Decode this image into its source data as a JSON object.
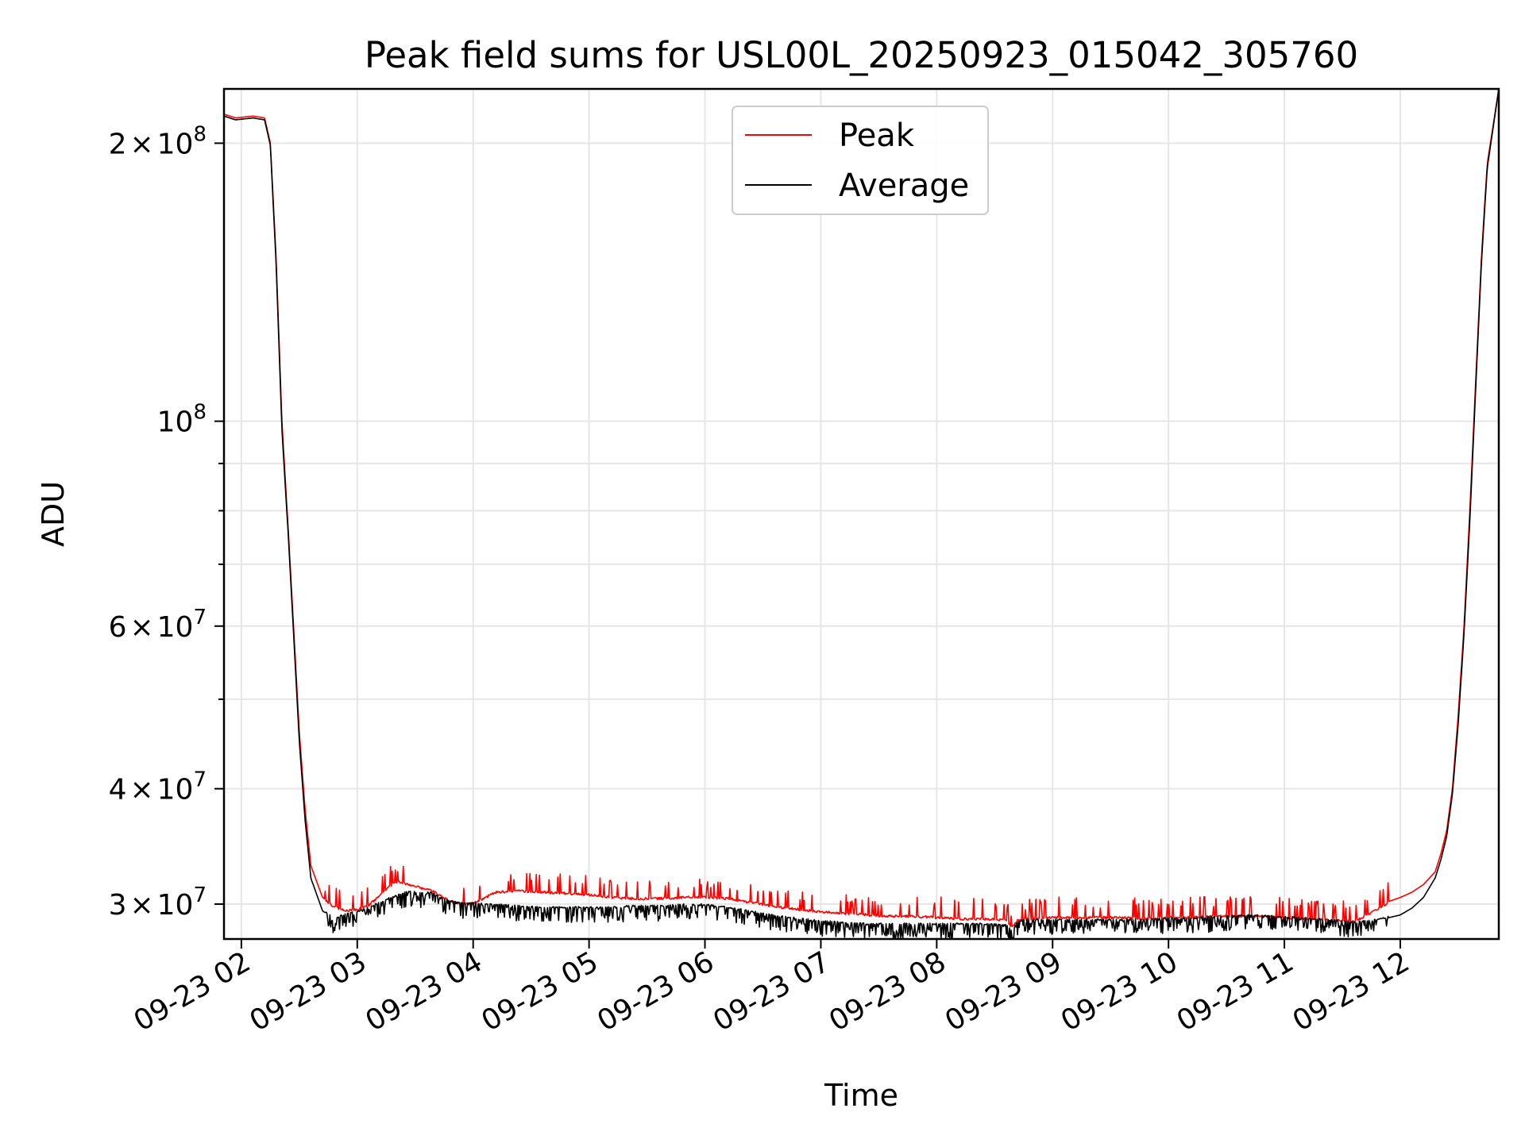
{
  "chart_data": {
    "type": "line",
    "title": "Peak field sums for USL00L_20250923_015042_305760",
    "xlabel": "Time",
    "ylabel": "ADU",
    "yscale": "log",
    "grid": true,
    "legend_position": "top-center",
    "xlim": [
      1.85,
      12.85
    ],
    "ylim": [
      27500000,
      229000000
    ],
    "x_unit": "hours on 09-23",
    "x_ticks": [
      {
        "value": 2,
        "label": "09-23 02"
      },
      {
        "value": 3,
        "label": "09-23 03"
      },
      {
        "value": 4,
        "label": "09-23 04"
      },
      {
        "value": 5,
        "label": "09-23 05"
      },
      {
        "value": 6,
        "label": "09-23 06"
      },
      {
        "value": 7,
        "label": "09-23 07"
      },
      {
        "value": 8,
        "label": "09-23 08"
      },
      {
        "value": 9,
        "label": "09-23 09"
      },
      {
        "value": 10,
        "label": "09-23 10"
      },
      {
        "value": 11,
        "label": "09-23 11"
      },
      {
        "value": 12,
        "label": "09-23 12"
      }
    ],
    "y_ticks": [
      {
        "value": 30000000,
        "mantissa": "3",
        "exponent": "7"
      },
      {
        "value": 40000000,
        "mantissa": "4",
        "exponent": "7"
      },
      {
        "value": 60000000,
        "mantissa": "6",
        "exponent": "7"
      },
      {
        "value": 100000000,
        "mantissa": "",
        "exponent": "8"
      },
      {
        "value": 200000000,
        "mantissa": "2",
        "exponent": "8"
      }
    ],
    "y_minor_ticks": [
      50000000,
      70000000,
      80000000,
      90000000
    ],
    "times_sign": "×",
    "power_base": "10",
    "series": [
      {
        "name": "Peak",
        "color": "#ff0000",
        "x": [
          1.85,
          1.95,
          2.1,
          2.2,
          2.25,
          2.3,
          2.35,
          2.4,
          2.45,
          2.5,
          2.55,
          2.6,
          2.7,
          2.8,
          2.9,
          3.0,
          3.1,
          3.2,
          3.3,
          3.35,
          3.45,
          3.55,
          3.65,
          3.7,
          3.8,
          3.9,
          4.0,
          4.2,
          4.4,
          4.6,
          4.8,
          5.0,
          5.2,
          5.4,
          5.6,
          5.8,
          6.0,
          6.2,
          6.4,
          6.6,
          6.8,
          7.0,
          7.2,
          7.4,
          7.6,
          7.8,
          8.0,
          8.2,
          8.4,
          8.6,
          8.65,
          8.7,
          8.8,
          9.0,
          9.2,
          9.4,
          9.6,
          9.8,
          10.0,
          10.2,
          10.4,
          10.6,
          10.8,
          11.0,
          11.2,
          11.4,
          11.6,
          11.8,
          11.9,
          12.0,
          12.1,
          12.2,
          12.3,
          12.35,
          12.4,
          12.45,
          12.5,
          12.55,
          12.6,
          12.65,
          12.7,
          12.75,
          12.85
        ],
        "y": [
          215000000,
          213000000,
          214000000,
          213000000,
          200000000,
          150000000,
          100000000,
          78000000,
          60000000,
          46000000,
          38000000,
          33000000,
          30500000,
          29900000,
          29600000,
          29700000,
          30000000,
          30800000,
          31600000,
          31800000,
          31600000,
          31300000,
          31100000,
          30800000,
          30300000,
          30100000,
          30100000,
          31000000,
          31100000,
          31000000,
          30900000,
          30800000,
          30600000,
          30500000,
          30500000,
          30600000,
          30600000,
          30500000,
          30200000,
          29900000,
          29700000,
          29500000,
          29400000,
          29300000,
          29200000,
          29200000,
          29100000,
          29000000,
          29000000,
          28900000,
          28400000,
          28900000,
          29000000,
          29100000,
          29100000,
          29100000,
          29100000,
          29000000,
          29100000,
          29100000,
          29200000,
          29200000,
          29200000,
          29100000,
          29000000,
          28900000,
          28800000,
          29700000,
          30200000,
          30500000,
          30900000,
          31500000,
          32500000,
          34000000,
          36000000,
          40000000,
          48000000,
          60000000,
          80000000,
          110000000,
          150000000,
          190000000,
          229000000
        ]
      },
      {
        "name": "Average",
        "color": "#000000",
        "x": [
          1.85,
          1.95,
          2.1,
          2.2,
          2.25,
          2.3,
          2.35,
          2.4,
          2.45,
          2.5,
          2.55,
          2.6,
          2.7,
          2.8,
          2.9,
          3.0,
          3.1,
          3.2,
          3.3,
          3.35,
          3.45,
          3.55,
          3.65,
          3.7,
          3.8,
          3.9,
          4.0,
          4.2,
          4.4,
          4.6,
          4.8,
          5.0,
          5.2,
          5.4,
          5.6,
          5.8,
          6.0,
          6.2,
          6.4,
          6.6,
          6.8,
          7.0,
          7.2,
          7.4,
          7.6,
          7.8,
          8.0,
          8.2,
          8.4,
          8.6,
          8.65,
          8.7,
          8.8,
          9.0,
          9.2,
          9.4,
          9.6,
          9.8,
          10.0,
          10.2,
          10.4,
          10.6,
          10.8,
          11.0,
          11.2,
          11.4,
          11.6,
          11.8,
          11.9,
          12.0,
          12.1,
          12.2,
          12.3,
          12.35,
          12.4,
          12.45,
          12.5,
          12.55,
          12.6,
          12.65,
          12.7,
          12.75,
          12.85
        ],
        "y": [
          214000000,
          212000000,
          213000000,
          212000000,
          199000000,
          148000000,
          98000000,
          77000000,
          59000000,
          45000000,
          37000000,
          32000000,
          29500000,
          28900000,
          29200000,
          29400000,
          29700000,
          30100000,
          30500000,
          30700000,
          30900000,
          30800000,
          30800000,
          30500000,
          30200000,
          30000000,
          30000000,
          29900000,
          29800000,
          29700000,
          29700000,
          29700000,
          29700000,
          29800000,
          29800000,
          29900000,
          29900000,
          29700000,
          29400000,
          29100000,
          28900000,
          28700000,
          28600000,
          28500000,
          28500000,
          28500000,
          28500000,
          28500000,
          28500000,
          28400000,
          28000000,
          28700000,
          28800000,
          28800000,
          28800000,
          28800000,
          28800000,
          28800000,
          28900000,
          28900000,
          29000000,
          29100000,
          29100000,
          29000000,
          28900000,
          28800000,
          28600000,
          28800000,
          29000000,
          29200000,
          29700000,
          30500000,
          32000000,
          33500000,
          35500000,
          39500000,
          47000000,
          59000000,
          78000000,
          108000000,
          148000000,
          188000000,
          229000000
        ]
      }
    ]
  }
}
